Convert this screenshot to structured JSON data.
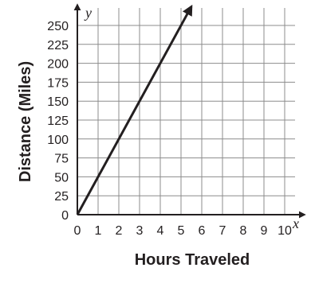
{
  "chart_data": {
    "type": "line",
    "title": "",
    "xlabel": "Hours Traveled",
    "ylabel": "Distance (Miles)",
    "x_var": "x",
    "y_var": "y",
    "xlim": [
      0,
      10
    ],
    "ylim": [
      0,
      250
    ],
    "x_ticks": [
      "0",
      "1",
      "2",
      "3",
      "4",
      "5",
      "6",
      "7",
      "8",
      "9",
      "10"
    ],
    "y_ticks": [
      "0",
      "25",
      "50",
      "75",
      "100",
      "125",
      "150",
      "175",
      "200",
      "225",
      "250"
    ],
    "grid": true,
    "series": [
      {
        "x": [
          0,
          5.5
        ],
        "y": [
          0,
          275
        ],
        "arrow_end": true
      }
    ],
    "colors": {
      "line": "#231f20",
      "grid": "#8c8c8c",
      "text": "#231f20"
    }
  }
}
